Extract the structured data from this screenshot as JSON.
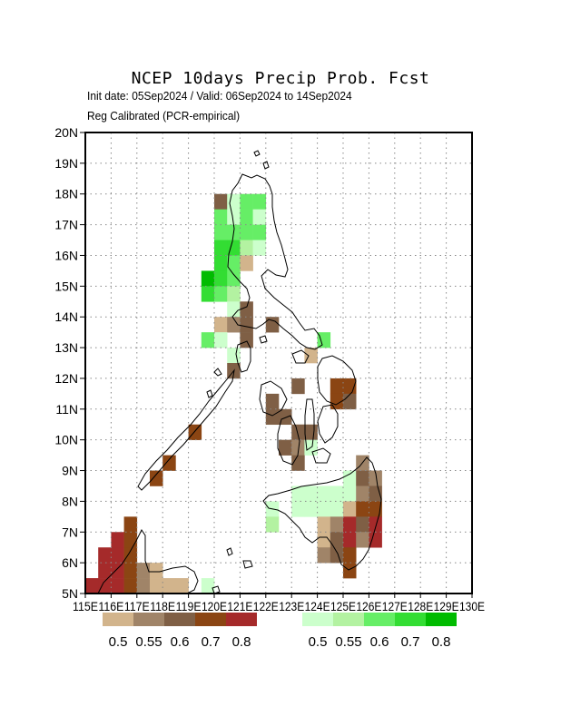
{
  "header": {
    "title": "NCEP 10days Precip Prob. Fcst",
    "subtitle_dates": "Init date: 05Sep2024 / Valid: 06Sep2024 to 14Sep2024",
    "subtitle_method": "Reg Calibrated (PCR-empirical)"
  },
  "axes": {
    "lat_labels": [
      "5N",
      "6N",
      "7N",
      "8N",
      "9N",
      "10N",
      "11N",
      "12N",
      "13N",
      "14N",
      "15N",
      "16N",
      "17N",
      "18N",
      "19N",
      "20N"
    ],
    "lon_labels": [
      "115E",
      "116E",
      "117E",
      "118E",
      "119E",
      "120E",
      "121E",
      "122E",
      "123E",
      "124E",
      "125E",
      "126E",
      "127E",
      "128E",
      "129E",
      "130E"
    ],
    "lon_range": [
      115,
      130
    ],
    "lat_range": [
      5,
      20
    ],
    "grid": "dotted"
  },
  "colorbars": {
    "dry": {
      "colors": [
        "#d2b48c",
        "#a08468",
        "#7f5f45",
        "#8b4513",
        "#a52a2a"
      ],
      "labels": [
        "0.5",
        "0.55",
        "0.6",
        "0.7",
        "0.8"
      ]
    },
    "wet": {
      "colors": [
        "#ccffcc",
        "#b3f2a1",
        "#66ee66",
        "#33dd33",
        "#00bb00"
      ],
      "labels": [
        "0.5",
        "0.55",
        "0.6",
        "0.7",
        "0.8"
      ]
    }
  },
  "map_data": {
    "cell_size_deg": 0.5,
    "cells": [
      {
        "lon": 120.25,
        "lat": 17.75,
        "cat": "d3"
      },
      {
        "lon": 120.75,
        "lat": 17.75,
        "cat": "w1"
      },
      {
        "lon": 121.25,
        "lat": 17.75,
        "cat": "w3"
      },
      {
        "lon": 121.75,
        "lat": 17.75,
        "cat": "w3"
      },
      {
        "lon": 120.25,
        "lat": 17.25,
        "cat": "w3"
      },
      {
        "lon": 120.75,
        "lat": 17.25,
        "cat": "w1"
      },
      {
        "lon": 121.25,
        "lat": 17.25,
        "cat": "w3"
      },
      {
        "lon": 121.75,
        "lat": 17.25,
        "cat": "w1"
      },
      {
        "lon": 120.25,
        "lat": 16.75,
        "cat": "w3"
      },
      {
        "lon": 120.75,
        "lat": 16.75,
        "cat": "w3"
      },
      {
        "lon": 121.25,
        "lat": 16.75,
        "cat": "w3"
      },
      {
        "lon": 121.75,
        "lat": 16.75,
        "cat": "w3"
      },
      {
        "lon": 120.25,
        "lat": 16.25,
        "cat": "w4"
      },
      {
        "lon": 120.75,
        "lat": 16.25,
        "cat": "w4"
      },
      {
        "lon": 121.25,
        "lat": 16.25,
        "cat": "w2"
      },
      {
        "lon": 121.75,
        "lat": 16.25,
        "cat": "w1"
      },
      {
        "lon": 120.25,
        "lat": 15.75,
        "cat": "w4"
      },
      {
        "lon": 120.75,
        "lat": 15.75,
        "cat": "w3"
      },
      {
        "lon": 121.25,
        "lat": 15.75,
        "cat": "d1"
      },
      {
        "lon": 119.75,
        "lat": 15.25,
        "cat": "w5"
      },
      {
        "lon": 120.25,
        "lat": 15.25,
        "cat": "w4"
      },
      {
        "lon": 120.75,
        "lat": 15.25,
        "cat": "w3"
      },
      {
        "lon": 119.75,
        "lat": 14.75,
        "cat": "w4"
      },
      {
        "lon": 120.25,
        "lat": 14.75,
        "cat": "w3"
      },
      {
        "lon": 120.75,
        "lat": 14.75,
        "cat": "w2"
      },
      {
        "lon": 120.75,
        "lat": 14.25,
        "cat": "w1"
      },
      {
        "lon": 121.25,
        "lat": 14.25,
        "cat": "d3"
      },
      {
        "lon": 120.25,
        "lat": 13.75,
        "cat": "d1"
      },
      {
        "lon": 120.75,
        "lat": 13.75,
        "cat": "d2"
      },
      {
        "lon": 121.25,
        "lat": 13.75,
        "cat": "d3"
      },
      {
        "lon": 122.25,
        "lat": 13.75,
        "cat": "d3"
      },
      {
        "lon": 121.25,
        "lat": 13.25,
        "cat": "d3"
      },
      {
        "lon": 119.75,
        "lat": 13.25,
        "cat": "w3"
      },
      {
        "lon": 120.25,
        "lat": 13.25,
        "cat": "w1"
      },
      {
        "lon": 120.75,
        "lat": 12.75,
        "cat": "w1"
      },
      {
        "lon": 124.25,
        "lat": 13.25,
        "cat": "w3"
      },
      {
        "lon": 123.75,
        "lat": 12.75,
        "cat": "d1"
      },
      {
        "lon": 120.75,
        "lat": 12.25,
        "cat": "d3"
      },
      {
        "lon": 123.25,
        "lat": 11.75,
        "cat": "d3"
      },
      {
        "lon": 124.75,
        "lat": 11.75,
        "cat": "d4"
      },
      {
        "lon": 125.25,
        "lat": 11.75,
        "cat": "d4"
      },
      {
        "lon": 122.25,
        "lat": 11.25,
        "cat": "d3"
      },
      {
        "lon": 124.75,
        "lat": 11.25,
        "cat": "d4"
      },
      {
        "lon": 125.25,
        "lat": 11.25,
        "cat": "d3"
      },
      {
        "lon": 122.25,
        "lat": 10.75,
        "cat": "d3"
      },
      {
        "lon": 122.75,
        "lat": 10.75,
        "cat": "d3"
      },
      {
        "lon": 123.25,
        "lat": 10.25,
        "cat": "d3"
      },
      {
        "lon": 123.75,
        "lat": 10.25,
        "cat": "d3"
      },
      {
        "lon": 122.75,
        "lat": 9.75,
        "cat": "d3"
      },
      {
        "lon": 123.25,
        "lat": 9.75,
        "cat": "d2"
      },
      {
        "lon": 123.75,
        "lat": 9.75,
        "cat": "w1"
      },
      {
        "lon": 123.25,
        "lat": 9.25,
        "cat": "d3"
      },
      {
        "lon": 125.75,
        "lat": 9.25,
        "cat": "d2"
      },
      {
        "lon": 125.25,
        "lat": 8.75,
        "cat": "w1"
      },
      {
        "lon": 125.75,
        "lat": 8.75,
        "cat": "d3"
      },
      {
        "lon": 126.25,
        "lat": 8.75,
        "cat": "d2"
      },
      {
        "lon": 123.25,
        "lat": 8.25,
        "cat": "w1"
      },
      {
        "lon": 123.75,
        "lat": 8.25,
        "cat": "w1"
      },
      {
        "lon": 124.25,
        "lat": 8.25,
        "cat": "w1"
      },
      {
        "lon": 124.75,
        "lat": 8.25,
        "cat": "w1"
      },
      {
        "lon": 125.25,
        "lat": 8.25,
        "cat": "w1"
      },
      {
        "lon": 125.75,
        "lat": 8.25,
        "cat": "d2"
      },
      {
        "lon": 126.25,
        "lat": 8.25,
        "cat": "d3"
      },
      {
        "lon": 122.25,
        "lat": 7.75,
        "cat": "w1"
      },
      {
        "lon": 123.25,
        "lat": 7.75,
        "cat": "w1"
      },
      {
        "lon": 123.75,
        "lat": 7.75,
        "cat": "w1"
      },
      {
        "lon": 124.25,
        "lat": 7.75,
        "cat": "w1"
      },
      {
        "lon": 124.75,
        "lat": 7.75,
        "cat": "w1"
      },
      {
        "lon": 125.25,
        "lat": 7.75,
        "cat": "d1"
      },
      {
        "lon": 125.75,
        "lat": 7.75,
        "cat": "d4"
      },
      {
        "lon": 126.25,
        "lat": 7.75,
        "cat": "d4"
      },
      {
        "lon": 122.25,
        "lat": 7.25,
        "cat": "w2"
      },
      {
        "lon": 124.25,
        "lat": 7.25,
        "cat": "d1"
      },
      {
        "lon": 124.75,
        "lat": 7.25,
        "cat": "d2"
      },
      {
        "lon": 125.25,
        "lat": 7.25,
        "cat": "d5"
      },
      {
        "lon": 125.75,
        "lat": 7.25,
        "cat": "d3"
      },
      {
        "lon": 126.25,
        "lat": 7.25,
        "cat": "d5"
      },
      {
        "lon": 124.25,
        "lat": 6.75,
        "cat": "d1"
      },
      {
        "lon": 124.75,
        "lat": 6.75,
        "cat": "d3"
      },
      {
        "lon": 125.25,
        "lat": 6.75,
        "cat": "d5"
      },
      {
        "lon": 125.75,
        "lat": 6.75,
        "cat": "d2"
      },
      {
        "lon": 126.25,
        "lat": 6.75,
        "cat": "d5"
      },
      {
        "lon": 124.25,
        "lat": 6.25,
        "cat": "d2"
      },
      {
        "lon": 124.75,
        "lat": 6.25,
        "cat": "d3"
      },
      {
        "lon": 125.25,
        "lat": 6.25,
        "cat": "d4"
      },
      {
        "lon": 125.25,
        "lat": 5.75,
        "cat": "d4"
      },
      {
        "lon": 119.25,
        "lat": 10.25,
        "cat": "d4"
      },
      {
        "lon": 118.25,
        "lat": 9.25,
        "cat": "d4"
      },
      {
        "lon": 117.75,
        "lat": 8.75,
        "cat": "d4"
      },
      {
        "lon": 116.75,
        "lat": 7.25,
        "cat": "d4"
      },
      {
        "lon": 116.25,
        "lat": 6.75,
        "cat": "d5"
      },
      {
        "lon": 116.75,
        "lat": 6.75,
        "cat": "d4"
      },
      {
        "lon": 115.75,
        "lat": 6.25,
        "cat": "d5"
      },
      {
        "lon": 116.25,
        "lat": 6.25,
        "cat": "d5"
      },
      {
        "lon": 116.75,
        "lat": 6.25,
        "cat": "d4"
      },
      {
        "lon": 115.75,
        "lat": 5.75,
        "cat": "d5"
      },
      {
        "lon": 116.25,
        "lat": 5.75,
        "cat": "d5"
      },
      {
        "lon": 116.75,
        "lat": 5.75,
        "cat": "d4"
      },
      {
        "lon": 117.25,
        "lat": 5.75,
        "cat": "d2"
      },
      {
        "lon": 117.75,
        "lat": 5.75,
        "cat": "d1"
      },
      {
        "lon": 115.25,
        "lat": 5.25,
        "cat": "d5"
      },
      {
        "lon": 115.75,
        "lat": 5.25,
        "cat": "d5"
      },
      {
        "lon": 116.25,
        "lat": 5.25,
        "cat": "d5"
      },
      {
        "lon": 116.75,
        "lat": 5.25,
        "cat": "d4"
      },
      {
        "lon": 117.25,
        "lat": 5.25,
        "cat": "d2"
      },
      {
        "lon": 117.75,
        "lat": 5.25,
        "cat": "d1"
      },
      {
        "lon": 118.25,
        "lat": 5.25,
        "cat": "d1"
      },
      {
        "lon": 118.75,
        "lat": 5.25,
        "cat": "d1"
      },
      {
        "lon": 119.75,
        "lat": 5.25,
        "cat": "w1"
      }
    ]
  }
}
